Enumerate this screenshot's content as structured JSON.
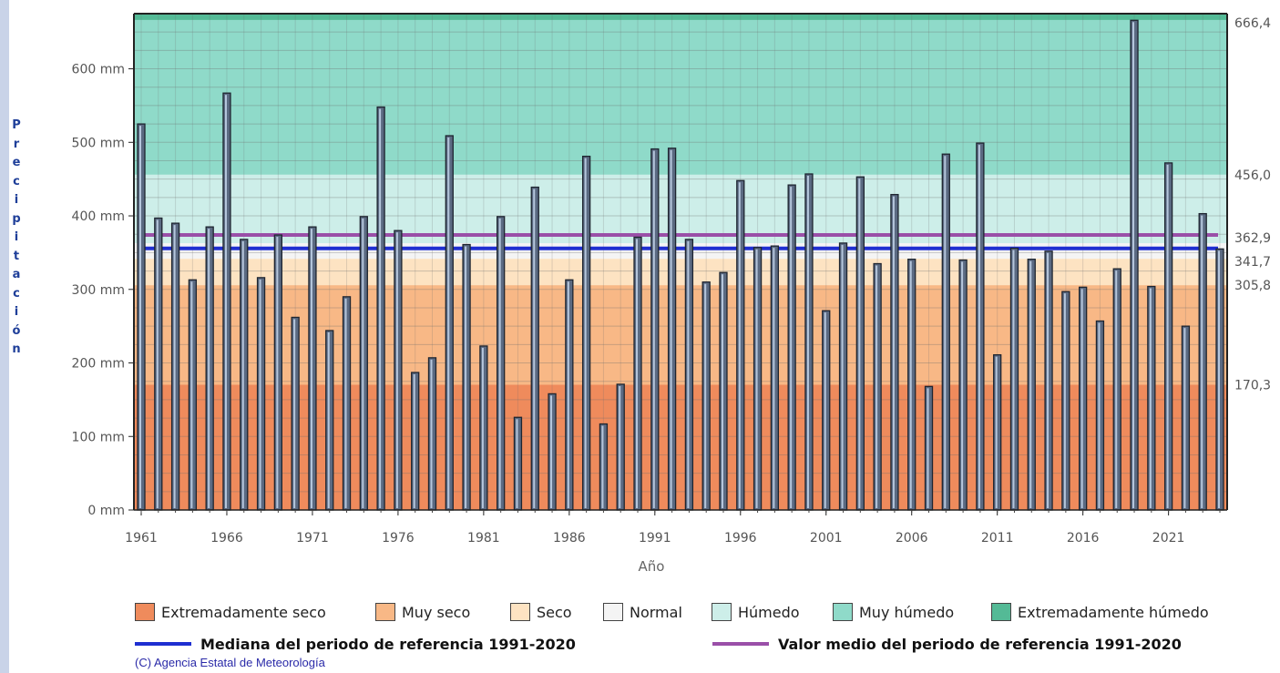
{
  "chart_data": {
    "type": "bar",
    "ylabel": "Precipitación",
    "xlabel": "Año",
    "ylim": [
      0,
      675
    ],
    "y_ticks": [
      "0 mm",
      "100 mm",
      "200 mm",
      "300 mm",
      "400 mm",
      "500 mm",
      "600 mm"
    ],
    "y_tick_values": [
      0,
      100,
      200,
      300,
      400,
      500,
      600
    ],
    "x_ticks": [
      "1961",
      "1966",
      "1971",
      "1976",
      "1981",
      "1986",
      "1991",
      "1996",
      "2001",
      "2006",
      "2011",
      "2016",
      "2021"
    ],
    "x_tick_values": [
      1961,
      1966,
      1971,
      1976,
      1981,
      1986,
      1991,
      1996,
      2001,
      2006,
      2011,
      2016,
      2021
    ],
    "years": [
      1961,
      1962,
      1963,
      1964,
      1965,
      1966,
      1967,
      1968,
      1969,
      1970,
      1971,
      1972,
      1973,
      1974,
      1975,
      1976,
      1977,
      1978,
      1979,
      1980,
      1981,
      1982,
      1983,
      1984,
      1985,
      1986,
      1987,
      1988,
      1989,
      1990,
      1991,
      1992,
      1993,
      1994,
      1995,
      1996,
      1997,
      1998,
      1999,
      2000,
      2001,
      2002,
      2003,
      2004,
      2005,
      2006,
      2007,
      2008,
      2009,
      2010,
      2011,
      2012,
      2013,
      2014,
      2015,
      2016,
      2017,
      2018,
      2019,
      2020,
      2021,
      2022,
      2023,
      2024
    ],
    "values": [
      525,
      397,
      390,
      313,
      385,
      567,
      368,
      316,
      374,
      262,
      385,
      244,
      290,
      399,
      548,
      380,
      187,
      207,
      509,
      361,
      223,
      399,
      126,
      439,
      158,
      313,
      481,
      117,
      171,
      371,
      491,
      492,
      368,
      310,
      323,
      448,
      357,
      359,
      442,
      457,
      271,
      363,
      453,
      335,
      429,
      341,
      168,
      484,
      340,
      499,
      211,
      356,
      341,
      352,
      297,
      303,
      257,
      328,
      666,
      304,
      472,
      250,
      403,
      355
    ],
    "thresholds_right_labels": [
      "666,4",
      "456,0",
      "362,9",
      "341,7",
      "305,8",
      "170,3"
    ],
    "thresholds_values": [
      666.4,
      456.0,
      362.9,
      341.7,
      305.8,
      170.3
    ],
    "median": 355.8,
    "mean": 374.0,
    "bands": [
      {
        "name": "Extremadamente seco",
        "from": 0,
        "to": 170.3,
        "color": "#ef8b5c"
      },
      {
        "name": "Muy seco",
        "from": 170.3,
        "to": 305.8,
        "color": "#f8b886"
      },
      {
        "name": "Seco",
        "from": 305.8,
        "to": 341.7,
        "color": "#fde3c2"
      },
      {
        "name": "Normal",
        "from": 341.7,
        "to": 362.9,
        "color": "#f4f4f4"
      },
      {
        "name": "Húmedo",
        "from": 362.9,
        "to": 456.0,
        "color": "#cdeee9"
      },
      {
        "name": "Muy húmedo",
        "from": 456.0,
        "to": 666.4,
        "color": "#8fdac9"
      },
      {
        "name": "Extremadamente húmedo",
        "from": 666.4,
        "to": 675,
        "color": "#54ba96"
      }
    ],
    "legend": [
      "Extremadamente seco",
      "Muy seco",
      "Seco",
      "Normal",
      "Húmedo",
      "Muy húmedo",
      "Extremadamente húmedo"
    ],
    "legend_placement": "bottom",
    "grid": true
  },
  "reference": {
    "median_label": "Mediana del periodo de referencia 1991-2020",
    "median_color": "#1f2fd1",
    "mean_label": "Valor medio del periodo de referencia 1991-2020",
    "mean_color": "#9a4fa8"
  },
  "copyright": "(C) Agencia Estatal de Meteorología"
}
